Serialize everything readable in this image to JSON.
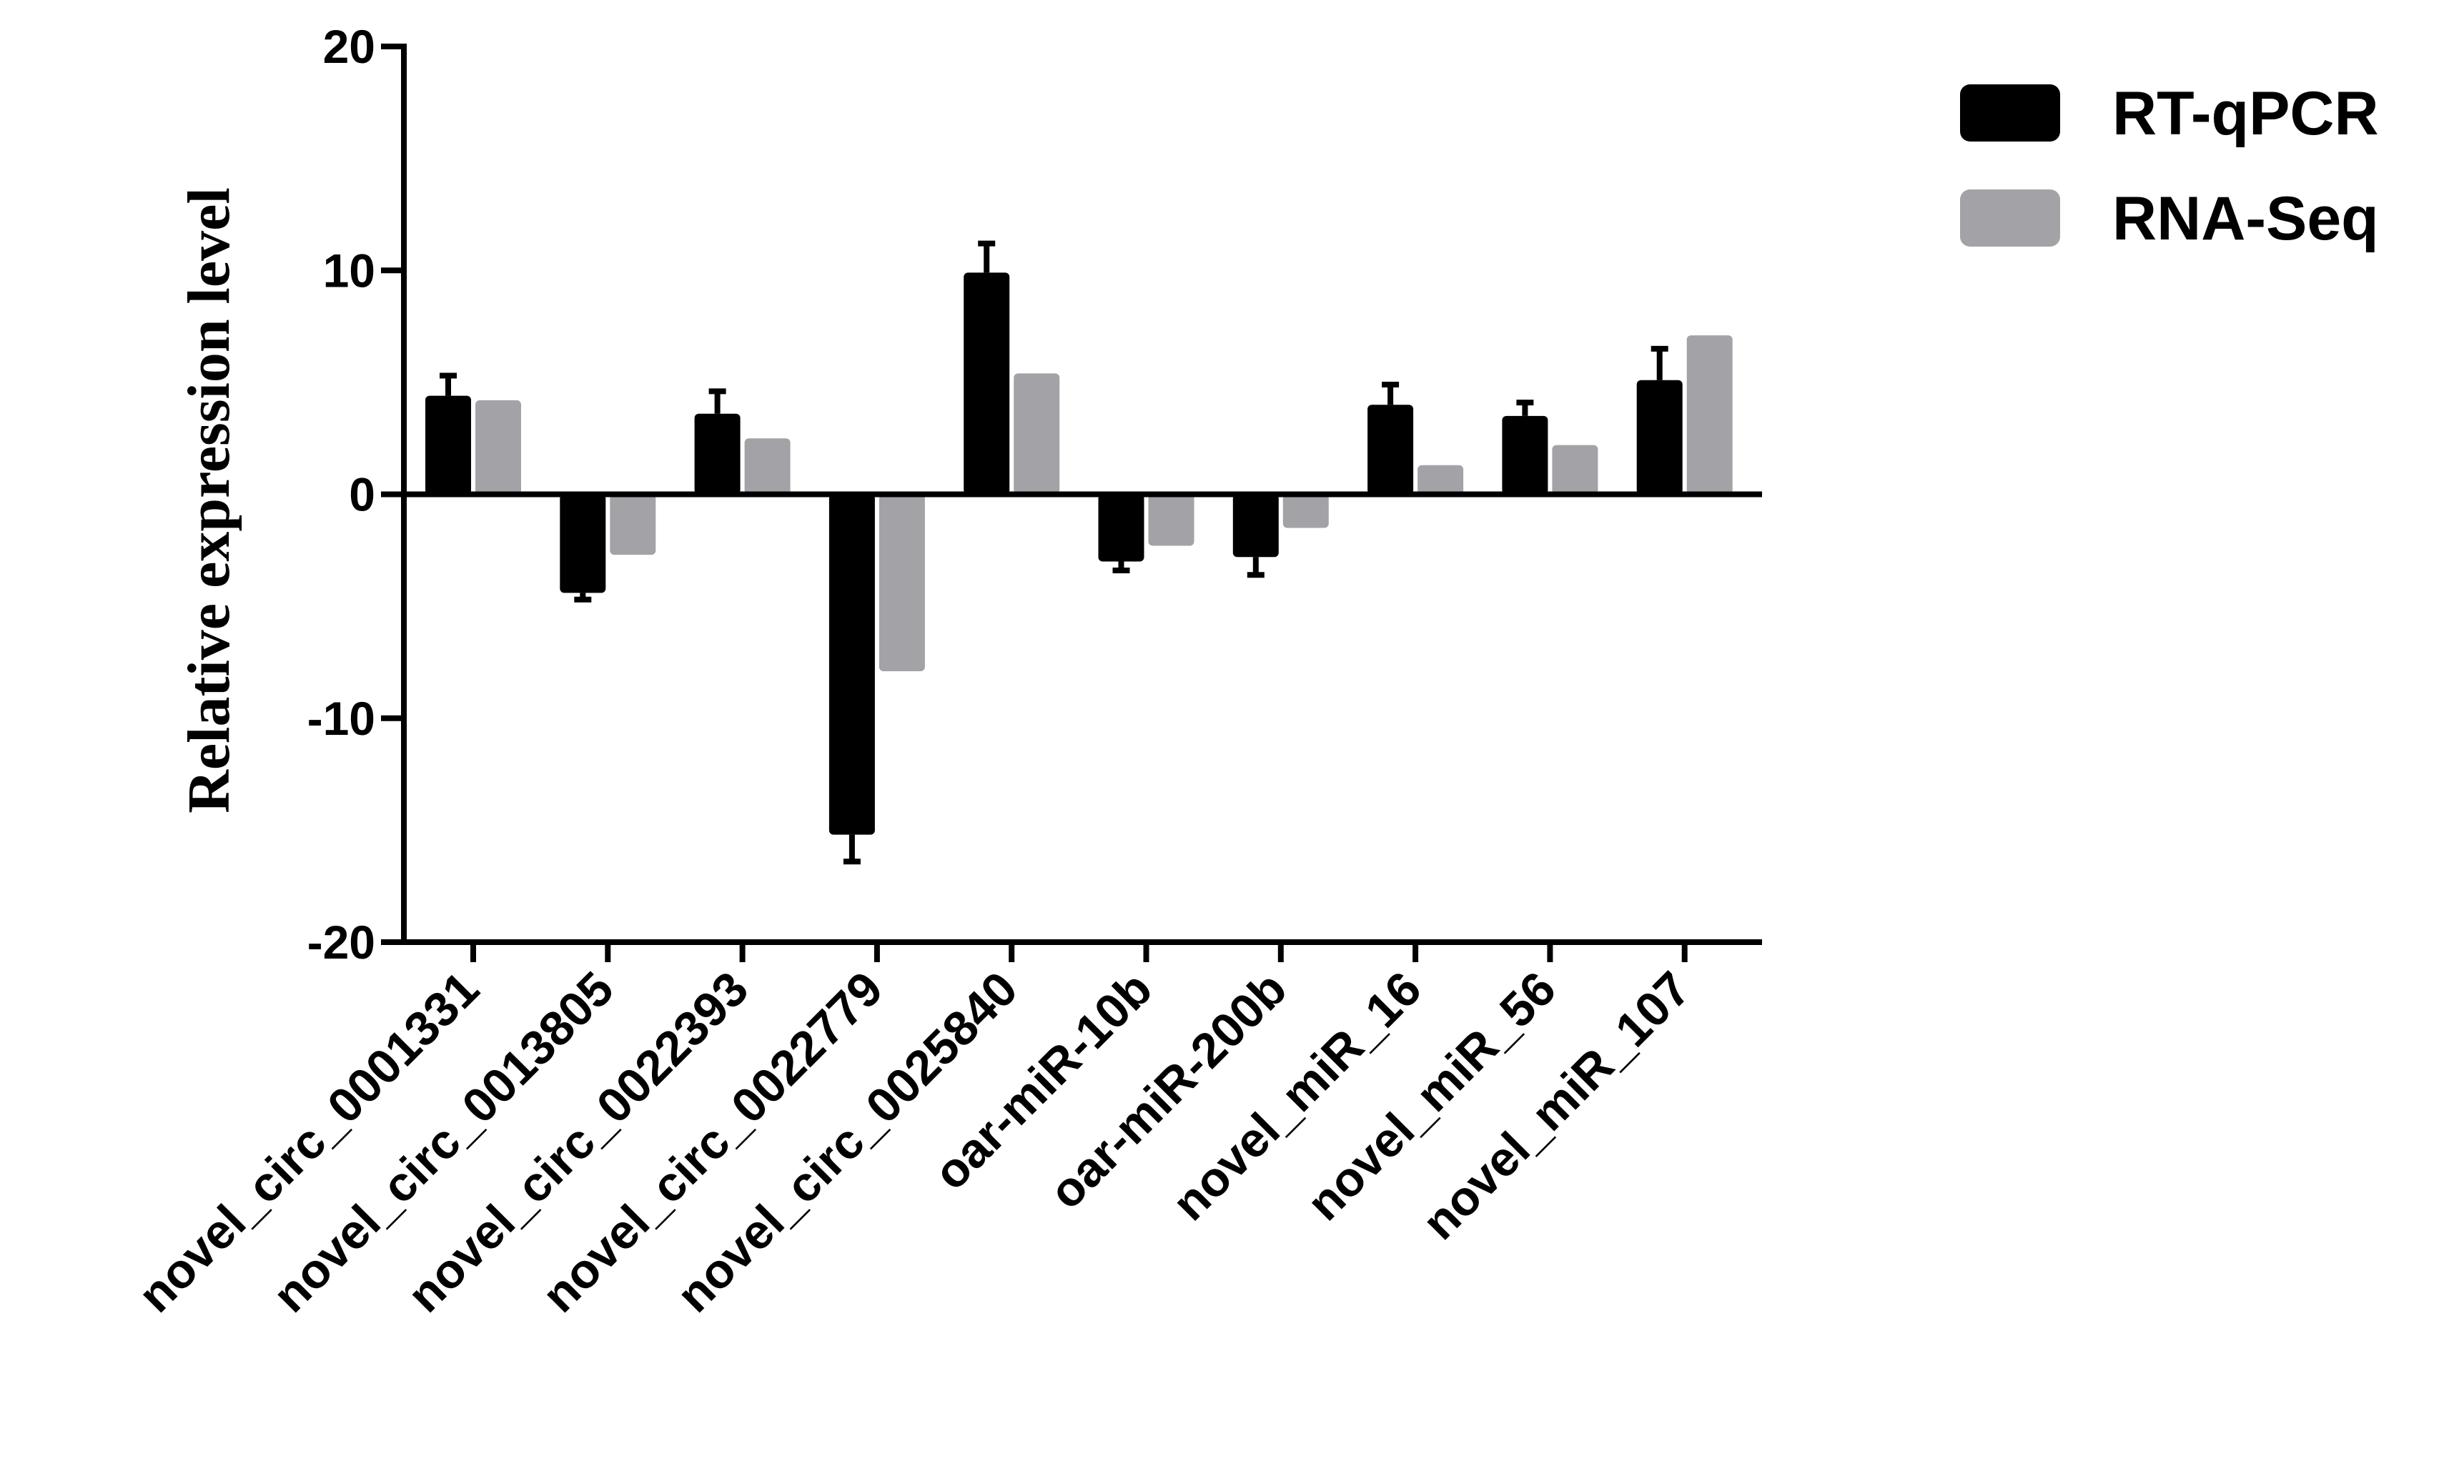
{
  "chart_data": {
    "type": "bar",
    "title": "",
    "xlabel": "",
    "ylabel": "Relative expression level",
    "ylim": [
      -20,
      20
    ],
    "yticks": [
      "20",
      "10",
      "0",
      "-10",
      "-20"
    ],
    "ytick_values": [
      20,
      10,
      0,
      -10,
      -20
    ],
    "categories": [
      "novel_circ_0001331",
      "novel_circ_0013805",
      "novel_circ_0022393",
      "novel_circ_0022779",
      "novel_circ_0025840",
      "oar-miR-10b",
      "oar-miR-200b",
      "novel_miR_16",
      "novel_miR_56",
      "novel_miR_107"
    ],
    "series": [
      {
        "name": "RT-qPCR",
        "color": "#000000",
        "values": [
          4.4,
          -4.4,
          3.6,
          -15.2,
          9.9,
          -3.0,
          -2.8,
          4.0,
          3.5,
          5.1
        ],
        "error": [
          0.9,
          0.3,
          1.0,
          1.2,
          1.3,
          0.4,
          0.8,
          0.9,
          0.6,
          1.4
        ]
      },
      {
        "name": "RNA-Seq",
        "color": "#a3a3a7",
        "values": [
          4.2,
          -2.7,
          2.5,
          -7.9,
          5.4,
          -2.3,
          -1.5,
          1.3,
          2.2,
          7.1
        ],
        "error": [
          0,
          0,
          0,
          0,
          0,
          0,
          0,
          0,
          0,
          0
        ]
      }
    ],
    "legend": {
      "placement": "top-right"
    },
    "grid": false
  }
}
